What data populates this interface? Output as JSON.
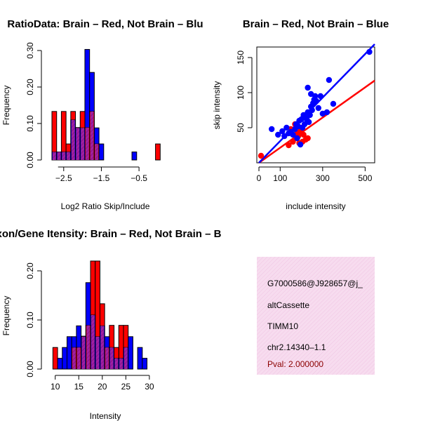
{
  "colors": {
    "red": "#ff0000",
    "blue": "#0000ff",
    "overlap": "#a020a0",
    "info_bg": "#f7dcef",
    "pval": "#8b0000"
  },
  "chart_data": [
    {
      "type": "bar",
      "subtype": "overlaid-histogram",
      "title": "RatioData: Brain – Red, Not Brain – Blu",
      "xlabel": "Log2 Ratio Skip/Include",
      "ylabel": "Frequency",
      "xlim": [
        -2.85,
        0.15
      ],
      "ylim": [
        0,
        0.3
      ],
      "bin_width": 0.125,
      "bin_start": -2.8125,
      "xticks": [
        {
          "v": -2.5,
          "label": "−2.5"
        },
        {
          "v": -1.5,
          "label": "−1.5"
        },
        {
          "v": -0.5,
          "label": "−0.5"
        }
      ],
      "yticks": [
        {
          "v": 0.0,
          "label": "0.00"
        },
        {
          "v": 0.1,
          "label": "0.10"
        },
        {
          "v": 0.2,
          "label": "0.20"
        },
        {
          "v": 0.3,
          "label": "0.30"
        }
      ],
      "series": [
        {
          "name": "Brain",
          "color": "red",
          "values": [
            0.133,
            0.022,
            0.133,
            0.044,
            0.133,
            0.089,
            0.133,
            0.089,
            0.133,
            0.044,
            0.0,
            0.0,
            0.0,
            0.0,
            0.0,
            0.0,
            0.0,
            0.0,
            0.0,
            0.0,
            0.0,
            0.0,
            0.044
          ]
        },
        {
          "name": "Not Brain",
          "color": "blue",
          "values": [
            0.022,
            0.022,
            0.022,
            0.022,
            0.11,
            0.088,
            0.088,
            0.303,
            0.24,
            0.088,
            0.044,
            0.0,
            0.0,
            0.0,
            0.0,
            0.0,
            0.0,
            0.022,
            0.0,
            0.0,
            0.0,
            0.0,
            0.0
          ]
        }
      ]
    },
    {
      "type": "scatter",
      "title": "Brain – Red, Not Brain – Blue",
      "xlabel": "include intensity",
      "ylabel": "skip intensity",
      "xlim": [
        -10,
        545
      ],
      "ylim": [
        0,
        165
      ],
      "xticks": [
        {
          "v": 0,
          "label": "0"
        },
        {
          "v": 100,
          "label": "100"
        },
        {
          "v": 300,
          "label": "300"
        },
        {
          "v": 500,
          "label": "500"
        }
      ],
      "yticks": [
        {
          "v": 50,
          "label": "50"
        },
        {
          "v": 100,
          "label": "100"
        },
        {
          "v": 150,
          "label": "150"
        }
      ],
      "series": [
        {
          "name": "Brain",
          "color": "red",
          "points": [
            [
              10,
              10
            ],
            [
              140,
              25
            ],
            [
              160,
              30
            ],
            [
              175,
              35
            ],
            [
              180,
              42
            ],
            [
              185,
              38
            ],
            [
              195,
              45
            ],
            [
              200,
              50
            ],
            [
              205,
              30
            ],
            [
              210,
              40
            ],
            [
              220,
              33
            ],
            [
              230,
              35
            ],
            [
              170,
              55
            ],
            [
              150,
              48
            ],
            [
              190,
              28
            ]
          ],
          "fit": {
            "slope": 0.215,
            "intercept": 0
          }
        },
        {
          "name": "Not Brain",
          "color": "blue",
          "points": [
            [
              60,
              48
            ],
            [
              90,
              40
            ],
            [
              110,
              45
            ],
            [
              120,
              38
            ],
            [
              130,
              50
            ],
            [
              140,
              42
            ],
            [
              150,
              44
            ],
            [
              160,
              40
            ],
            [
              170,
              48
            ],
            [
              175,
              55
            ],
            [
              180,
              35
            ],
            [
              185,
              52
            ],
            [
              190,
              60
            ],
            [
              195,
              26
            ],
            [
              200,
              62
            ],
            [
              205,
              50
            ],
            [
              210,
              68
            ],
            [
              215,
              55
            ],
            [
              220,
              64
            ],
            [
              225,
              62
            ],
            [
              230,
              72
            ],
            [
              235,
              58
            ],
            [
              240,
              68
            ],
            [
              245,
              80
            ],
            [
              250,
              75
            ],
            [
              255,
              85
            ],
            [
              260,
              90
            ],
            [
              265,
              95
            ],
            [
              270,
              88
            ],
            [
              280,
              78
            ],
            [
              290,
              95
            ],
            [
              300,
              70
            ],
            [
              320,
              72
            ],
            [
              330,
              118
            ],
            [
              350,
              84
            ],
            [
              230,
              107
            ],
            [
              245,
              98
            ],
            [
              520,
              158
            ]
          ],
          "fit": {
            "slope": 0.31,
            "intercept": 0
          }
        }
      ]
    },
    {
      "type": "bar",
      "subtype": "overlaid-histogram",
      "title": "Exon/Gene Itensity: Brain – Red, Not Brain – B",
      "xlabel": "Intensity",
      "ylabel": "Frequency",
      "xlim": [
        9.0,
        33.0
      ],
      "ylim": [
        0,
        0.22
      ],
      "bin_width": 1,
      "bin_start": 9.5,
      "xticks": [
        {
          "v": 10,
          "label": "10"
        },
        {
          "v": 15,
          "label": "15"
        },
        {
          "v": 20,
          "label": "20"
        },
        {
          "v": 25,
          "label": "25"
        },
        {
          "v": 30,
          "label": "30"
        }
      ],
      "yticks": [
        {
          "v": 0.0,
          "label": "0.00"
        },
        {
          "v": 0.1,
          "label": "0.10"
        },
        {
          "v": 0.2,
          "label": "0.20"
        }
      ],
      "series": [
        {
          "name": "Brain",
          "color": "red",
          "values": [
            0.044,
            0.0,
            0.0,
            0.0,
            0.044,
            0.044,
            0.067,
            0.089,
            0.22,
            0.22,
            0.133,
            0.044,
            0.089,
            0.044,
            0.089,
            0.089,
            0.0,
            0.0,
            0.0,
            0.0,
            0.0,
            0.0
          ]
        },
        {
          "name": "Not Brain",
          "color": "blue",
          "values": [
            0.0,
            0.022,
            0.044,
            0.066,
            0.066,
            0.088,
            0.066,
            0.176,
            0.11,
            0.066,
            0.088,
            0.066,
            0.044,
            0.022,
            0.022,
            0.044,
            0.066,
            0.0,
            0.044,
            0.022,
            0.0,
            0.0
          ]
        }
      ]
    }
  ],
  "info_box": {
    "lines": [
      "G7000586@J928657@j_",
      "altCassette",
      "TIMM10",
      "chr2.14340–1.1"
    ],
    "pval": "Pval: 2.000000"
  }
}
